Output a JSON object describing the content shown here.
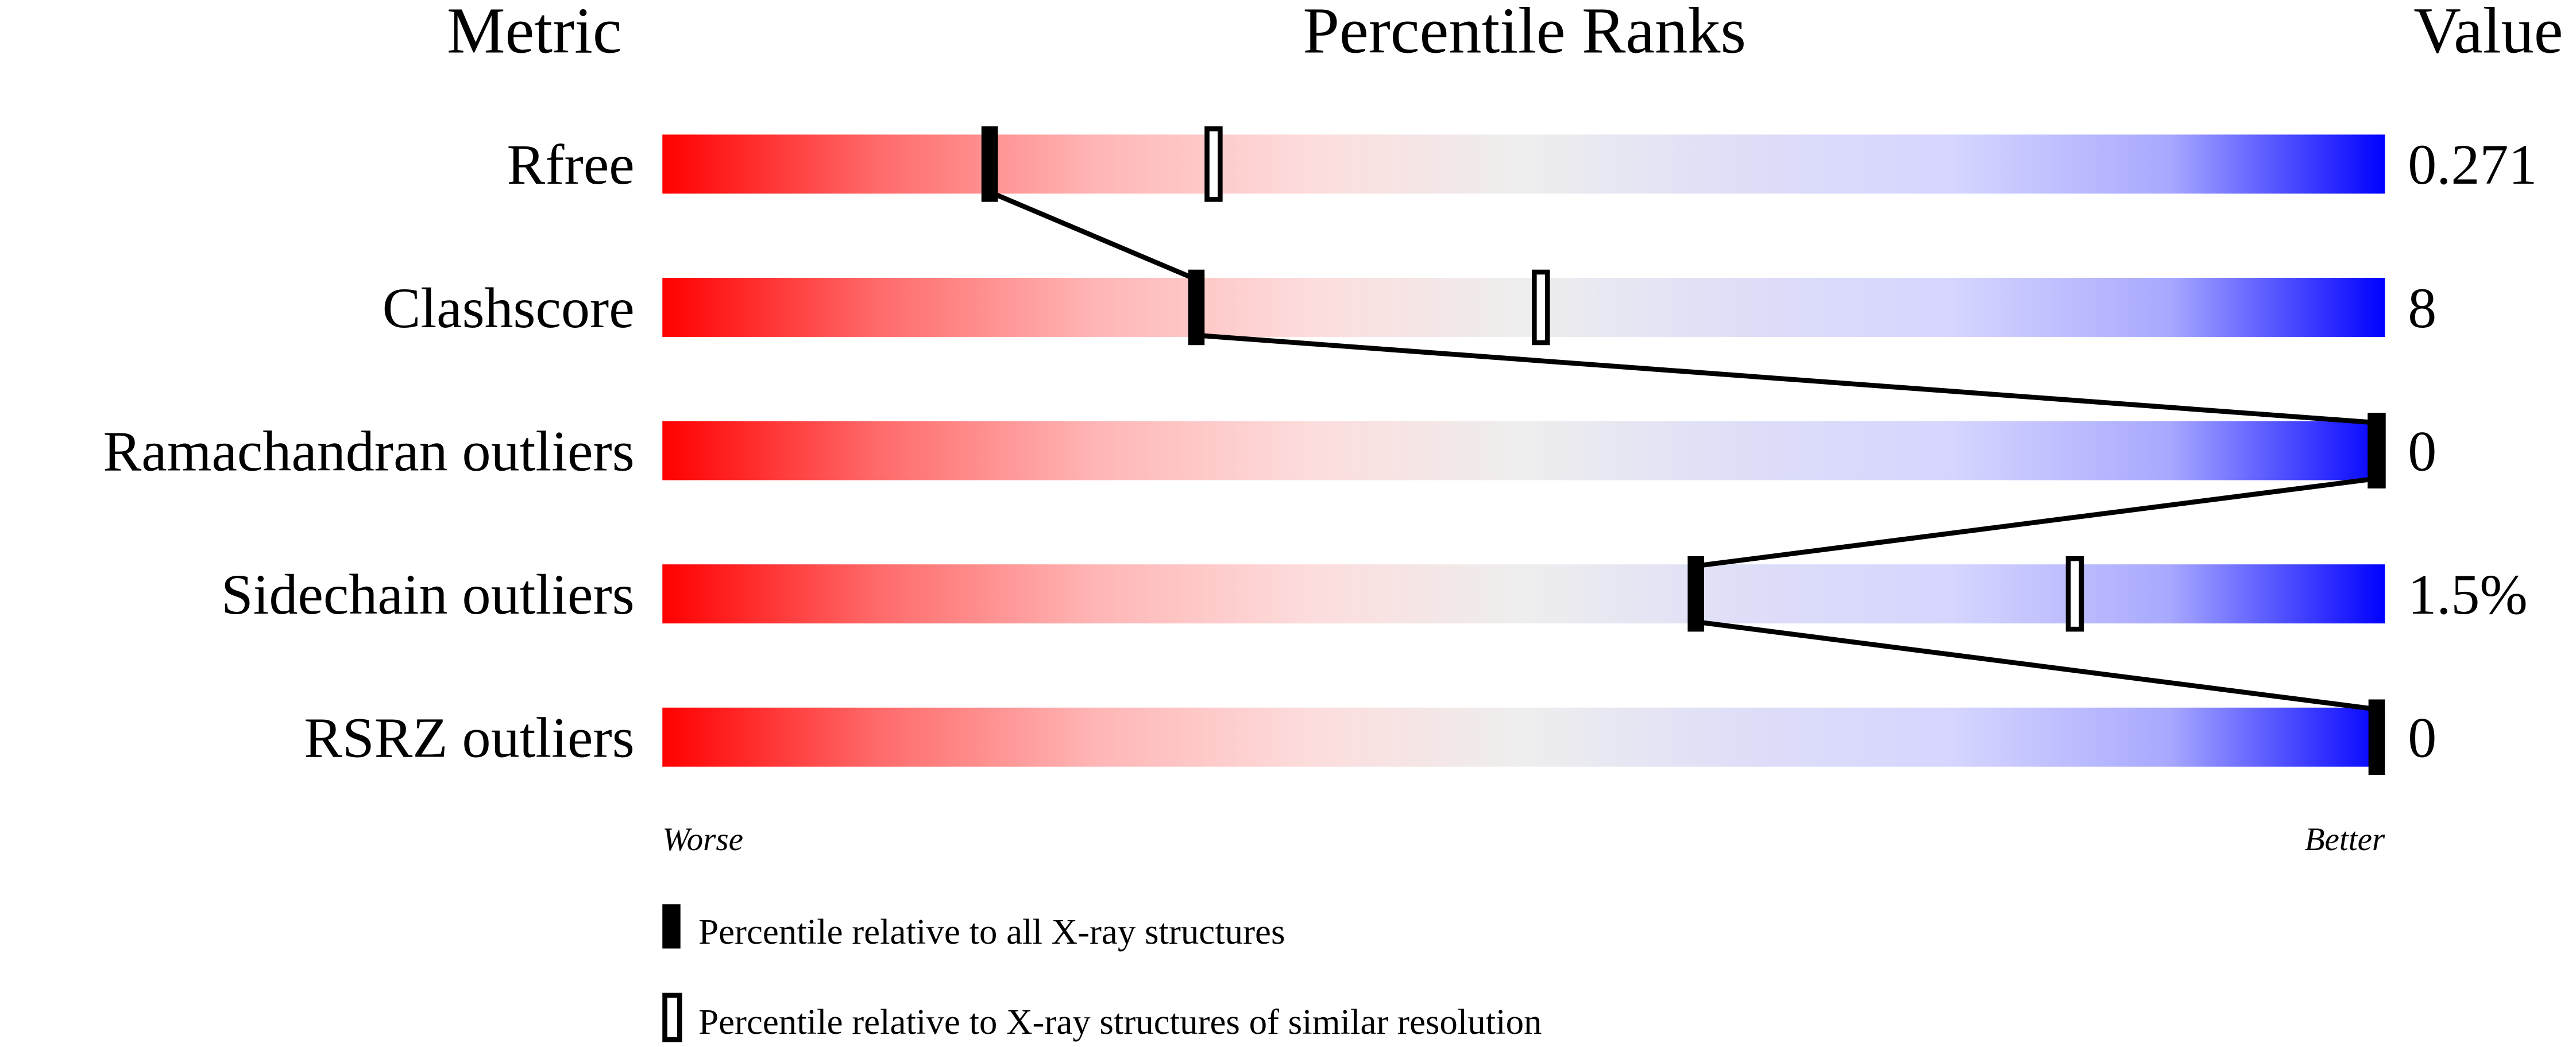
{
  "chart_data": {
    "type": "percentile-slider",
    "headers": {
      "metric": "Metric",
      "ranks": "Percentile Ranks",
      "value": "Value"
    },
    "xlim": [
      0,
      100
    ],
    "axis": {
      "left": "Worse",
      "right": "Better"
    },
    "gradient_colors": [
      "#ff0000",
      "#ff6a6a",
      "#ffb5b5",
      "#fddcdc",
      "#eeeeee",
      "#dedef8",
      "#d5d5ff",
      "#a8a8ff",
      "#0000ff"
    ],
    "rows": [
      {
        "metric": "Rfree",
        "value": "0.271",
        "all": 19,
        "similar": 32
      },
      {
        "metric": "Clashscore",
        "value": "8",
        "all": 31,
        "similar": 51
      },
      {
        "metric": "Ramachandran outliers",
        "value": "0",
        "all": 100,
        "similar": 100
      },
      {
        "metric": "Sidechain outliers",
        "value": "1.5%",
        "all": 60,
        "similar": 82
      },
      {
        "metric": "RSRZ outliers",
        "value": "0",
        "all": 100,
        "similar": null
      }
    ],
    "legend": [
      {
        "marker": "filled",
        "label": "Percentile relative to all X-ray structures"
      },
      {
        "marker": "hollow",
        "label": "Percentile relative to X-ray structures of similar resolution"
      }
    ]
  }
}
